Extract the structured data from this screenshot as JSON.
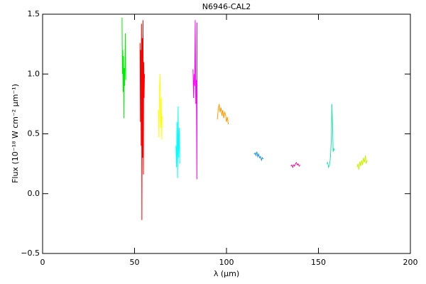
{
  "chart_data": {
    "type": "line",
    "title": "N6946-CAL2",
    "xlabel": "λ (µm)",
    "ylabel": "Flux (10⁻¹⁸ W cm⁻² µm⁻¹)",
    "xlim": [
      0,
      200
    ],
    "xticks": [
      0,
      50,
      100,
      150,
      200
    ],
    "ylim": [
      -0.5,
      1.5
    ],
    "yticks": [
      {
        "value": -0.5,
        "label": "−0.5"
      },
      {
        "value": 0,
        "label": "0.0"
      },
      {
        "value": 0.5,
        "label": "0.5"
      },
      {
        "value": 1,
        "label": "1.0"
      },
      {
        "value": 1.5,
        "label": "1.5"
      }
    ],
    "series": [
      {
        "color": "#00ee00",
        "x": [
          43.2,
          43.4,
          43.6,
          43.8,
          44.0,
          44.2,
          44.4,
          44.6,
          44.8,
          45.0,
          45.2
        ],
        "values": [
          1.47,
          1.0,
          1.2,
          0.85,
          1.15,
          0.63,
          1.05,
          0.9,
          1.1,
          1.34,
          0.95
        ]
      },
      {
        "color": "#ff0000",
        "x": [
          53.0,
          53.2,
          53.4,
          53.6,
          53.8,
          54.0,
          54.2,
          54.4,
          54.6,
          54.8,
          55.0,
          55.2,
          55.4
        ],
        "values": [
          1.26,
          0.6,
          1.2,
          0.4,
          1.42,
          -0.22,
          1.3,
          0.3,
          1.45,
          0.16,
          1.1,
          0.8,
          1.0
        ]
      },
      {
        "color": "#ffff00",
        "x": [
          63.0,
          63.3,
          63.6,
          63.9,
          64.2,
          64.5,
          64.8,
          65.0
        ],
        "values": [
          0.7,
          0.47,
          0.9,
          1.0,
          0.55,
          0.8,
          0.45,
          0.65
        ]
      },
      {
        "color": "#00ffff",
        "x": [
          72.5,
          72.8,
          73.1,
          73.4,
          73.7,
          74.0,
          74.3,
          74.6
        ],
        "values": [
          0.4,
          0.22,
          0.6,
          0.13,
          0.73,
          0.3,
          0.55,
          0.25
        ]
      },
      {
        "color": "#ff00ff",
        "x": [
          81.8,
          82.1,
          82.4,
          82.7,
          83.0,
          83.3,
          83.6,
          83.9,
          84.0
        ],
        "values": [
          1.04,
          0.8,
          1.0,
          0.9,
          1.45,
          0.75,
          0.95,
          0.12,
          1.43
        ]
      },
      {
        "color": "#ff9900",
        "x": [
          95,
          95.5,
          96,
          96.5,
          97,
          97.5,
          98,
          98.5,
          99,
          99.5,
          100,
          100.5,
          101
        ],
        "values": [
          0.62,
          0.7,
          0.75,
          0.68,
          0.72,
          0.65,
          0.7,
          0.63,
          0.68,
          0.66,
          0.6,
          0.64,
          0.58
        ]
      },
      {
        "color": "#1e90d8",
        "x": [
          115,
          115.5,
          116,
          116.5,
          117,
          117.5,
          118,
          118.5,
          119,
          119.5,
          120
        ],
        "values": [
          0.33,
          0.34,
          0.32,
          0.35,
          0.31,
          0.33,
          0.3,
          0.31,
          0.28,
          0.3,
          0.29
        ]
      },
      {
        "color": "#e0208f",
        "x": [
          135,
          135.5,
          136,
          136.5,
          137,
          137.5,
          138,
          138.5,
          139,
          139.5,
          140
        ],
        "values": [
          0.23,
          0.24,
          0.22,
          0.24,
          0.23,
          0.25,
          0.26,
          0.24,
          0.25,
          0.23,
          0.24
        ]
      },
      {
        "color": "#20e0b0",
        "x": [
          154.5,
          155,
          155.5,
          156,
          156.5,
          157,
          157.3,
          157.6,
          158,
          158.3,
          158.6
        ],
        "values": [
          0.25,
          0.26,
          0.22,
          0.24,
          0.3,
          0.45,
          0.75,
          0.6,
          0.35,
          0.38,
          0.36
        ]
      },
      {
        "color": "#ccee00",
        "x": [
          171,
          171.5,
          172,
          172.5,
          173,
          173.5,
          174,
          174.5,
          175,
          175.5,
          176,
          176.5
        ],
        "values": [
          0.22,
          0.25,
          0.2,
          0.27,
          0.23,
          0.28,
          0.24,
          0.3,
          0.26,
          0.32,
          0.25,
          0.28
        ]
      }
    ]
  }
}
